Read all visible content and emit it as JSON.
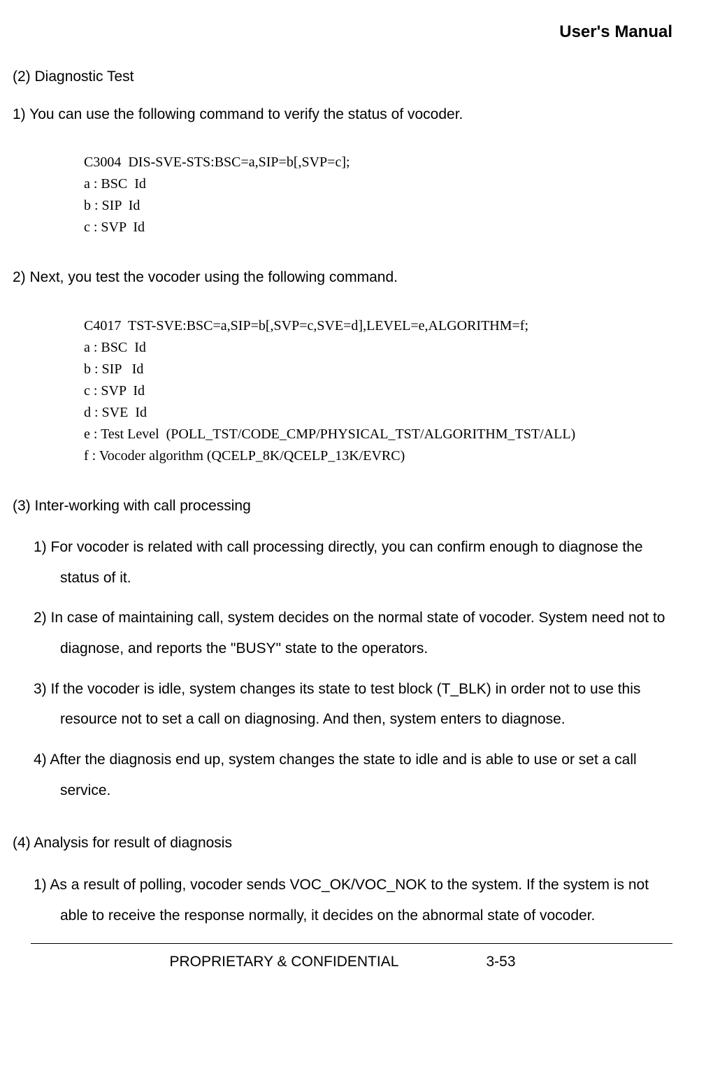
{
  "header": {
    "title": "User's Manual"
  },
  "s1": {
    "title": "(2) Diagnostic Test",
    "p1": "1) You can use the following command to verify the status of vocoder.",
    "code": {
      "l1": "C3004  DIS-SVE-STS:BSC=a,SIP=b[,SVP=c];",
      "l2": "a : BSC  Id",
      "l3": "b : SIP  Id",
      "l4": "c : SVP  Id"
    },
    "p2": "2) Next, you test the vocoder using the following command.",
    "code2": {
      "l1": "C4017  TST-SVE:BSC=a,SIP=b[,SVP=c,SVE=d],LEVEL=e,ALGORITHM=f;",
      "l2": "a : BSC  Id",
      "l3": "b : SIP   Id",
      "l4": "c : SVP  Id",
      "l5": "d : SVE  Id",
      "l6": "e : Test Level  (POLL_TST/CODE_CMP/PHYSICAL_TST/ALGORITHM_TST/ALL)",
      "l7": "f : Vocoder algorithm (QCELP_8K/QCELP_13K/EVRC)"
    }
  },
  "s2": {
    "title": "(3) Inter-working with call processing",
    "items": {
      "i1": "1) For vocoder is related with call processing directly, you can confirm enough to diagnose the status of it.",
      "i2": "2) In case of maintaining call, system decides on the normal state of vocoder. System need not to diagnose, and reports the \"BUSY\" state to the operators.",
      "i3": "3) If the vocoder is idle, system changes its state to test block (T_BLK) in order not to use this resource not to set a call on diagnosing. And then, system enters to diagnose.",
      "i4": "4) After the diagnosis end up, system changes the state to idle and is able to use or set a call service."
    }
  },
  "s3": {
    "title": "(4) Analysis for result of diagnosis",
    "items": {
      "i1": "1) As a result of polling, vocoder sends VOC_OK/VOC_NOK to the system. If the system is not able to receive the response normally, it decides on the abnormal state of vocoder."
    }
  },
  "footer": {
    "label": "PROPRIETARY & CONFIDENTIAL",
    "page": "3-53"
  }
}
